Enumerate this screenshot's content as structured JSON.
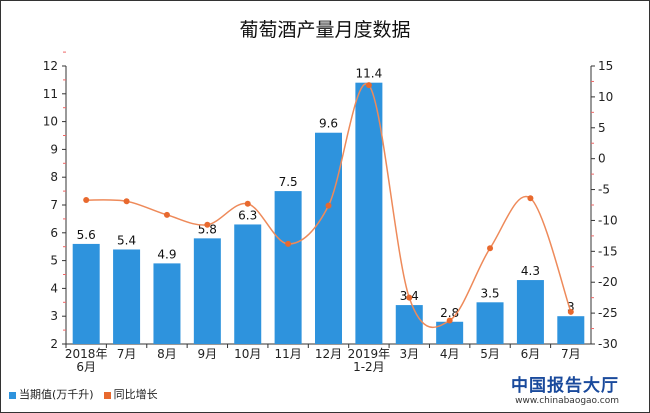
{
  "chart_data": {
    "type": "bar+line",
    "title": "葡萄酒产量月度数据",
    "categories": [
      "2018年\n6月",
      "7月",
      "8月",
      "9月",
      "10月",
      "11月",
      "12月",
      "2019年\n1-2月",
      "3月",
      "4月",
      "5月",
      "6月",
      "7月"
    ],
    "series": [
      {
        "name": "当期值(万千升)",
        "type": "bar",
        "axis": "left",
        "color": "#2e93dd",
        "values": [
          5.6,
          5.4,
          4.9,
          5.8,
          6.3,
          7.5,
          9.6,
          11.4,
          3.4,
          2.8,
          3.5,
          4.3,
          3
        ],
        "labels": [
          "5.6",
          "5.4",
          "4.9",
          "5.8",
          "6.3",
          "7.5",
          "9.6",
          "11.4",
          "3.4",
          "2.8",
          "3.5",
          "4.3",
          "3"
        ]
      },
      {
        "name": "同比增长",
        "type": "line",
        "axis": "right",
        "color": "#e8692e",
        "values": [
          -6.7,
          -6.9,
          -9.1,
          -10.7,
          -7.3,
          -13.8,
          -7.6,
          11.9,
          -22.5,
          -26.2,
          -14.5,
          -6.4,
          -24.8
        ]
      }
    ],
    "yleft": {
      "lim": [
        2,
        12
      ],
      "ticks": [
        "2",
        "3",
        "4",
        "5",
        "6",
        "7",
        "8",
        "9",
        "10",
        "11",
        "12"
      ]
    },
    "yright": {
      "lim": [
        -30,
        15
      ],
      "ticks": [
        "-30",
        "-25",
        "-20",
        "-15",
        "-10",
        "-5",
        "0",
        "5",
        "10",
        "15"
      ]
    },
    "grid": false,
    "legend": "bottom-left"
  },
  "watermark": {
    "name": "中国报告大厅",
    "url": "www.chinabaogao.com"
  }
}
